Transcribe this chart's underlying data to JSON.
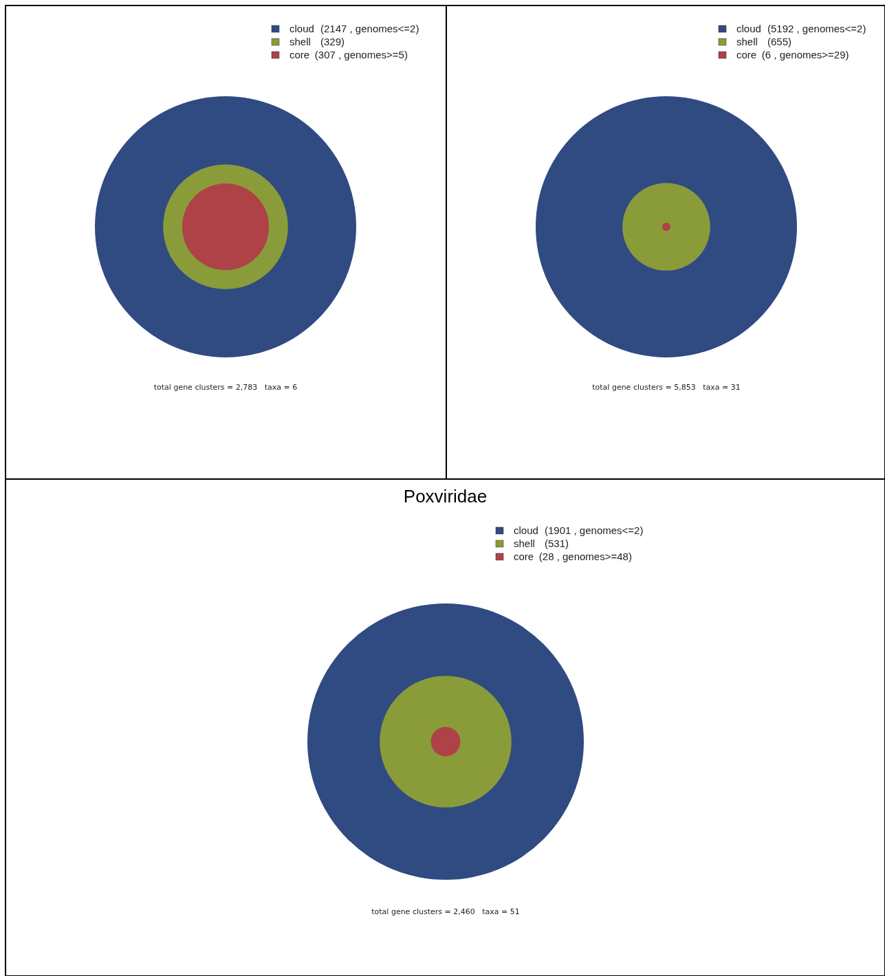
{
  "chart_data": [
    {
      "type": "other",
      "categories": [
        "cloud",
        "shell",
        "core"
      ],
      "values": [
        2147,
        329,
        307
      ],
      "value_labels": [
        "(2147 , genomes<=2)",
        "(329)",
        "(307 , genomes>=5)"
      ],
      "colors": [
        "#304a82",
        "#8a9b3a",
        "#ae4246"
      ],
      "annotations": [
        "total gene clusters = 2,783   taxa = 6"
      ]
    },
    {
      "type": "other",
      "categories": [
        "cloud",
        "shell",
        "core"
      ],
      "values": [
        5192,
        655,
        6
      ],
      "value_labels": [
        "(5192 , genomes<=2)",
        "(655)",
        "(6 , genomes>=29)"
      ],
      "colors": [
        "#304a82",
        "#8a9b3a",
        "#ae4246"
      ],
      "annotations": [
        "total gene clusters = 5,853   taxa = 31"
      ]
    },
    {
      "type": "other",
      "title": "Poxviridae",
      "categories": [
        "cloud",
        "shell",
        "core"
      ],
      "values": [
        1901,
        531,
        28
      ],
      "value_labels": [
        "(1901 , genomes<=2)",
        "(531)",
        "(28 , genomes>=48)"
      ],
      "colors": [
        "#304a82",
        "#8a9b3a",
        "#ae4246"
      ],
      "annotations": [
        "total gene clusters = 2,460   taxa = 51"
      ]
    }
  ]
}
